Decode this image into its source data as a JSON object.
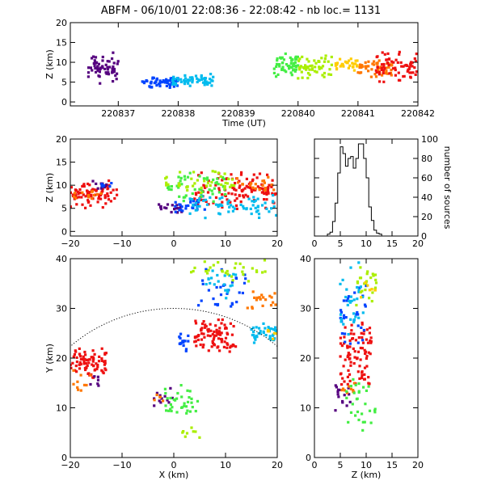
{
  "title": "ABFM - 06/10/01 22:08:36 - 22:08:42 - nb loc.=    1131",
  "chart_data": [
    {
      "id": "time-height",
      "type": "scatter",
      "xlabel": "Time (UT)",
      "ylabel": "Z (km)",
      "xlim": [
        220836.2,
        220842
      ],
      "ylim": [
        -1,
        20
      ],
      "xticks": [
        220837,
        220838,
        220839,
        220840,
        220841,
        220842
      ],
      "xticklabels": [
        "220837",
        "220838",
        "220839",
        "220840",
        "220841",
        "220842"
      ],
      "yticks": [
        0,
        5,
        10,
        15,
        20
      ],
      "yticklabels": [
        "0",
        "5",
        "10",
        "15",
        "20"
      ],
      "clusters": [
        {
          "color": "#55007f",
          "x": [
            220836.5,
            220837.0
          ],
          "y": [
            4,
            13
          ],
          "n": 60
        },
        {
          "color": "#0044ff",
          "x": [
            220837.4,
            220838.0
          ],
          "y": [
            3.5,
            6.5
          ],
          "n": 60
        },
        {
          "color": "#00bbee",
          "x": [
            220837.9,
            220838.6
          ],
          "y": [
            4,
            7
          ],
          "n": 60
        },
        {
          "color": "#44ee44",
          "x": [
            220839.6,
            220840.0
          ],
          "y": [
            6,
            12
          ],
          "n": 55
        },
        {
          "color": "#aaee00",
          "x": [
            220840.0,
            220840.6
          ],
          "y": [
            6,
            12
          ],
          "n": 55
        },
        {
          "color": "#ffcc00",
          "x": [
            220840.6,
            220841.0
          ],
          "y": [
            8,
            11
          ],
          "n": 30
        },
        {
          "color": "#ff7700",
          "x": [
            220841.0,
            220841.6
          ],
          "y": [
            6,
            11
          ],
          "n": 50
        },
        {
          "color": "#ee1111",
          "x": [
            220841.3,
            220842.0
          ],
          "y": [
            5,
            13
          ],
          "n": 70
        }
      ]
    },
    {
      "id": "x-z",
      "type": "scatter",
      "xlabel": "",
      "ylabel": "Z (km)",
      "xlim": [
        -20,
        20
      ],
      "ylim": [
        -1,
        20
      ],
      "xticks": [
        -20,
        -10,
        0,
        10,
        20
      ],
      "xticklabels": [
        "−20",
        "−10",
        "0",
        "10",
        "20"
      ],
      "yticks": [
        0,
        5,
        10,
        15,
        20
      ],
      "yticklabels": [
        "0",
        "5",
        "10",
        "15",
        "20"
      ],
      "clusters": [
        {
          "color": "#ee1111",
          "x": [
            -20,
            -11
          ],
          "y": [
            5,
            11
          ],
          "n": 80
        },
        {
          "color": "#ff7700",
          "x": [
            -20,
            -14
          ],
          "y": [
            7,
            9
          ],
          "n": 12
        },
        {
          "color": "#55007f",
          "x": [
            -16,
            -13
          ],
          "y": [
            9,
            11
          ],
          "n": 10
        },
        {
          "color": "#0044ff",
          "x": [
            -14,
            -12
          ],
          "y": [
            9,
            11
          ],
          "n": 6
        },
        {
          "color": "#ee1111",
          "x": [
            4,
            20
          ],
          "y": [
            5,
            13
          ],
          "n": 120
        },
        {
          "color": "#55007f",
          "x": [
            -3,
            2
          ],
          "y": [
            4,
            6
          ],
          "n": 20
        },
        {
          "color": "#0044ff",
          "x": [
            0,
            6
          ],
          "y": [
            4,
            7
          ],
          "n": 25
        },
        {
          "color": "#00bbee",
          "x": [
            3,
            20
          ],
          "y": [
            3,
            8
          ],
          "n": 70
        },
        {
          "color": "#44ee44",
          "x": [
            -2,
            10
          ],
          "y": [
            6,
            13
          ],
          "n": 50
        },
        {
          "color": "#aaee00",
          "x": [
            -3,
            12
          ],
          "y": [
            8,
            13
          ],
          "n": 40
        },
        {
          "color": "#ff7700",
          "x": [
            12,
            20
          ],
          "y": [
            8,
            12
          ],
          "n": 20
        }
      ]
    },
    {
      "id": "height-histogram",
      "type": "bar",
      "xlabel": "",
      "ylabel": "number of sources",
      "xlim": [
        0,
        20
      ],
      "ylim": [
        0,
        100
      ],
      "xticks": [
        0,
        5,
        10,
        15,
        20
      ],
      "xticklabels": [
        "0",
        "5",
        "10",
        "15",
        "20"
      ],
      "yticks": [
        0,
        20,
        40,
        60,
        80,
        100
      ],
      "yticklabels": [
        "0",
        "20",
        "40",
        "60",
        "80",
        "100"
      ],
      "bin_width": 0.5,
      "bin_start": 2.5,
      "values": [
        2,
        4,
        15,
        34,
        65,
        92,
        85,
        72,
        80,
        82,
        70,
        80,
        95,
        95,
        80,
        60,
        30,
        16,
        6,
        3,
        2
      ]
    },
    {
      "id": "x-y",
      "type": "scatter",
      "xlabel": "X (km)",
      "ylabel": "Y (km)",
      "xlim": [
        -20,
        20
      ],
      "ylim": [
        0,
        40
      ],
      "xticks": [
        -20,
        -10,
        0,
        10,
        20
      ],
      "xticklabels": [
        "−20",
        "−10",
        "0",
        "10",
        "20"
      ],
      "yticks": [
        0,
        10,
        20,
        30,
        40
      ],
      "yticklabels": [
        "0",
        "10",
        "20",
        "30",
        "40"
      ],
      "ring": {
        "center": [
          0,
          0
        ],
        "radius": 30
      },
      "clusters": [
        {
          "color": "#ee1111",
          "x": [
            -20,
            -13
          ],
          "y": [
            16,
            22
          ],
          "n": 80
        },
        {
          "color": "#ff7700",
          "x": [
            -20,
            -16
          ],
          "y": [
            13,
            18
          ],
          "n": 10
        },
        {
          "color": "#55007f",
          "x": [
            -17,
            -14
          ],
          "y": [
            14,
            17
          ],
          "n": 6
        },
        {
          "color": "#ee1111",
          "x": [
            4,
            12
          ],
          "y": [
            21,
            28
          ],
          "n": 90
        },
        {
          "color": "#0044ff",
          "x": [
            1,
            3
          ],
          "y": [
            21,
            25
          ],
          "n": 15
        },
        {
          "color": "#00bbee",
          "x": [
            15,
            20
          ],
          "y": [
            23,
            27
          ],
          "n": 40
        },
        {
          "color": "#ffcc00",
          "x": [
            18,
            20
          ],
          "y": [
            23,
            26
          ],
          "n": 6
        },
        {
          "color": "#0044ff",
          "x": [
            4,
            14
          ],
          "y": [
            30,
            38
          ],
          "n": 30
        },
        {
          "color": "#00bbee",
          "x": [
            6,
            12
          ],
          "y": [
            32,
            38
          ],
          "n": 20
        },
        {
          "color": "#aaee00",
          "x": [
            3,
            18
          ],
          "y": [
            35,
            40
          ],
          "n": 30
        },
        {
          "color": "#ff7700",
          "x": [
            14,
            20
          ],
          "y": [
            29,
            35
          ],
          "n": 20
        },
        {
          "color": "#55007f",
          "x": [
            -4,
            0
          ],
          "y": [
            10,
            14
          ],
          "n": 12
        },
        {
          "color": "#ff7700",
          "x": [
            -4,
            -2
          ],
          "y": [
            11,
            13
          ],
          "n": 5
        },
        {
          "color": "#44ee44",
          "x": [
            -2,
            5
          ],
          "y": [
            8,
            15
          ],
          "n": 35
        },
        {
          "color": "#aaee00",
          "x": [
            1,
            5
          ],
          "y": [
            4,
            6
          ],
          "n": 8
        }
      ]
    },
    {
      "id": "z-y",
      "type": "scatter",
      "xlabel": "Z (km)",
      "ylabel": "",
      "xlim": [
        0,
        20
      ],
      "ylim": [
        0,
        40
      ],
      "xticks": [
        0,
        5,
        10,
        15,
        20
      ],
      "xticklabels": [
        "0",
        "5",
        "10",
        "15",
        "20"
      ],
      "yticks": [
        0,
        10,
        20,
        30,
        40
      ],
      "yticklabels": [
        "0",
        "10",
        "20",
        "30",
        "40"
      ],
      "clusters": [
        {
          "color": "#ee1111",
          "x": [
            5,
            11
          ],
          "y": [
            14,
            28
          ],
          "n": 90
        },
        {
          "color": "#0044ff",
          "x": [
            5,
            10
          ],
          "y": [
            20,
            36
          ],
          "n": 30
        },
        {
          "color": "#00bbee",
          "x": [
            5,
            10
          ],
          "y": [
            24,
            40
          ],
          "n": 30
        },
        {
          "color": "#55007f",
          "x": [
            4,
            7
          ],
          "y": [
            9,
            16
          ],
          "n": 15
        },
        {
          "color": "#ff7700",
          "x": [
            5,
            8
          ],
          "y": [
            12,
            16
          ],
          "n": 10
        },
        {
          "color": "#44ee44",
          "x": [
            6,
            12
          ],
          "y": [
            5,
            16
          ],
          "n": 30
        },
        {
          "color": "#aaee00",
          "x": [
            8,
            12
          ],
          "y": [
            30,
            40
          ],
          "n": 25
        },
        {
          "color": "#ffcc00",
          "x": [
            8,
            12
          ],
          "y": [
            32,
            36
          ],
          "n": 8
        }
      ]
    }
  ]
}
